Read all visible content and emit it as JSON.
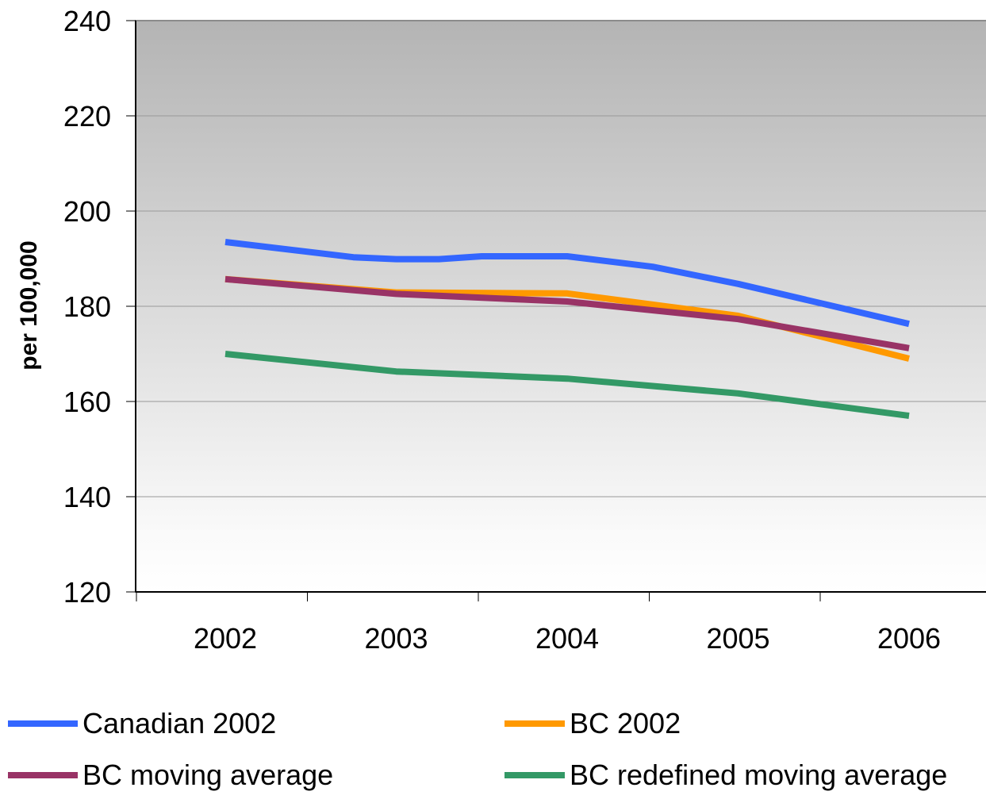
{
  "chart_data": {
    "type": "line",
    "title": "",
    "xlabel": "",
    "ylabel": "per 100,000",
    "categories": [
      "2002",
      "2003",
      "2004",
      "2005",
      "2006"
    ],
    "ylim": [
      120,
      240
    ],
    "yticks": [
      "120",
      "140",
      "160",
      "180",
      "200",
      "220",
      "240"
    ],
    "grid": true,
    "legend_position": "bottom",
    "series": [
      {
        "name": "Canadian 2002",
        "color": "#3366ff",
        "points": [
          [
            2002,
            193.5
          ],
          [
            2002.75,
            190.3
          ],
          [
            2003,
            189.9
          ],
          [
            2003.25,
            189.9
          ],
          [
            2003.5,
            190.5
          ],
          [
            2004,
            190.5
          ],
          [
            2004.5,
            188.3
          ],
          [
            2005,
            184.7
          ],
          [
            2006,
            176.3
          ]
        ]
      },
      {
        "name": "BC 2002",
        "color": "#ff9900",
        "points": [
          [
            2002,
            185.7
          ],
          [
            2003,
            182.9
          ],
          [
            2004,
            182.7
          ],
          [
            2005,
            178.0
          ],
          [
            2006,
            169.0
          ]
        ]
      },
      {
        "name": "BC moving average",
        "color": "#993366",
        "points": [
          [
            2002,
            185.7
          ],
          [
            2003,
            182.6
          ],
          [
            2004,
            181.0
          ],
          [
            2005,
            177.3
          ],
          [
            2006,
            171.2
          ]
        ]
      },
      {
        "name": "BC redefined moving average",
        "color": "#339966",
        "points": [
          [
            2002,
            170.0
          ],
          [
            2003,
            166.3
          ],
          [
            2004,
            164.8
          ],
          [
            2005,
            161.7
          ],
          [
            2006,
            157.0
          ]
        ]
      }
    ]
  }
}
